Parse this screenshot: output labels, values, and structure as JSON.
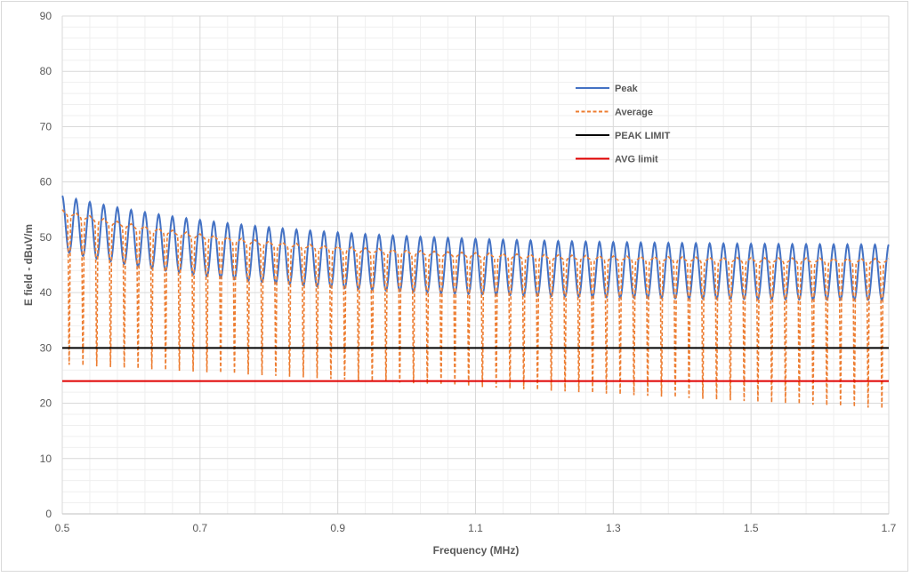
{
  "chart_data": {
    "type": "line",
    "title": "",
    "xlabel": "Frequency (MHz)",
    "ylabel": "E field - dBuV/m",
    "xlim": [
      0.5,
      1.7
    ],
    "ylim": [
      0,
      90
    ],
    "x_ticks": [
      "0.5",
      "0.7",
      "0.9",
      "1.1",
      "1.3",
      "1.5",
      "1.7"
    ],
    "y_ticks": [
      "0",
      "10",
      "20",
      "30",
      "40",
      "50",
      "60",
      "70",
      "80",
      "90"
    ],
    "grid": true,
    "legend_position": "top-right",
    "series": [
      {
        "name": "Peak",
        "color": "#4472c4",
        "style": "solid",
        "envelope_max_start": 57.5,
        "envelope_max_end": 48.5,
        "envelope_min_start": 47.5,
        "envelope_min_end": 38.5,
        "ripple_period_mhz": 0.02
      },
      {
        "name": "Average",
        "color": "#ed7d31",
        "style": "dashed",
        "envelope_max_start": 55,
        "envelope_max_end": 46,
        "envelope_min_start": 27,
        "envelope_min_end": 19,
        "ripple_period_mhz": 0.02
      },
      {
        "name": "PEAK LIMIT",
        "color": "#000000",
        "style": "solid",
        "x": [
          0.5,
          1.7
        ],
        "y": [
          30,
          30
        ]
      },
      {
        "name": "AVG limit",
        "color": "#e00000",
        "style": "solid",
        "x": [
          0.5,
          1.7
        ],
        "y": [
          24,
          24
        ]
      }
    ]
  }
}
